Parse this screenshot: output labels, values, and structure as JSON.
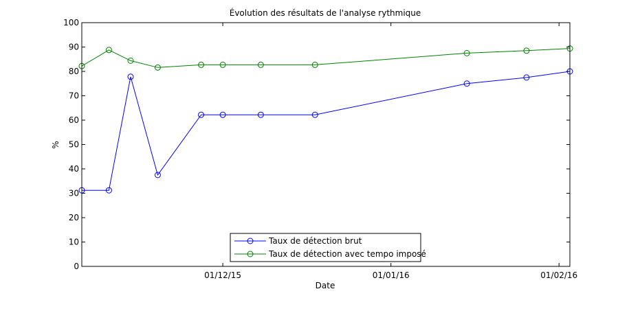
{
  "chart_data": {
    "type": "line",
    "title": "Évolution des résultats de l'analyse rythmique",
    "xlabel": "Date",
    "ylabel": "%",
    "ylim": [
      0,
      100
    ],
    "xlim": [
      "2015-11-05",
      "2016-02-03"
    ],
    "yticks": [
      0,
      10,
      20,
      30,
      40,
      50,
      60,
      70,
      80,
      90,
      100
    ],
    "xticks": [
      {
        "value": "2015-12-01",
        "label": "01/12/15"
      },
      {
        "value": "2016-01-01",
        "label": "01/01/16"
      },
      {
        "value": "2016-02-01",
        "label": "01/02/16"
      }
    ],
    "x": [
      "2015-11-05",
      "2015-11-10",
      "2015-11-14",
      "2015-11-19",
      "2015-11-27",
      "2015-12-01",
      "2015-12-08",
      "2015-12-18",
      "2016-01-15",
      "2016-01-26",
      "2016-02-03"
    ],
    "series": [
      {
        "name": "Taux de détection brut",
        "color": "#0000ff",
        "marker": "o",
        "values": [
          31.2,
          31.2,
          77.8,
          37.5,
          62.2,
          62.2,
          62.2,
          62.2,
          75.0,
          77.5,
          80.0
        ]
      },
      {
        "name": "Taux de détection avec tempo imposé",
        "color": "#008000",
        "marker": "o",
        "values": [
          82.2,
          88.8,
          84.4,
          81.6,
          82.7,
          82.7,
          82.7,
          82.7,
          87.5,
          88.5,
          89.4
        ]
      }
    ],
    "grid": false,
    "legend_position": "bottom-center"
  }
}
